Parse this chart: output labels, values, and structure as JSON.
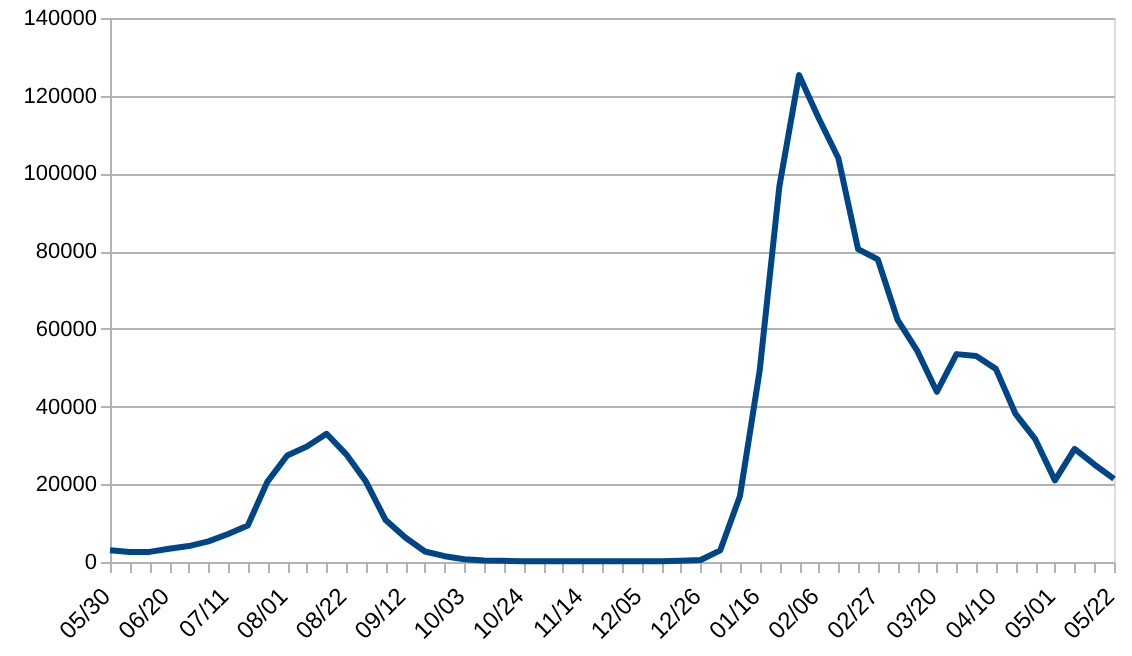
{
  "chart_data": {
    "type": "line",
    "categories": [
      "05/30",
      null,
      null,
      "06/20",
      null,
      null,
      "07/11",
      null,
      null,
      "08/01",
      null,
      null,
      "08/22",
      null,
      null,
      "09/12",
      null,
      null,
      "10/03",
      null,
      null,
      "10/24",
      null,
      null,
      "11/14",
      null,
      null,
      "12/05",
      null,
      null,
      "12/26",
      null,
      null,
      "01/16",
      null,
      null,
      "02/06",
      null,
      null,
      "02/27",
      null,
      null,
      "03/20",
      null,
      null,
      "04/10",
      null,
      null,
      "05/01",
      null,
      null,
      "05/22"
    ],
    "series": [
      {
        "color": "#004586",
        "values": [
          3000,
          2600,
          2600,
          3400,
          4100,
          5300,
          7200,
          9400,
          20700,
          27400,
          29700,
          33000,
          27700,
          20700,
          10800,
          6300,
          2700,
          1500,
          700,
          400,
          300,
          200,
          200,
          200,
          200,
          200,
          200,
          200,
          200,
          300,
          500,
          3000,
          17000,
          49200,
          96600,
          125300,
          114200,
          103900,
          80500,
          77900,
          62400,
          54400,
          43800,
          53500,
          53000,
          49700,
          38100,
          31600,
          21000,
          29100,
          25100,
          21400
        ]
      }
    ],
    "ylim": [
      0,
      140000
    ],
    "yticks": [
      0,
      20000,
      40000,
      60000,
      80000,
      100000,
      120000,
      140000
    ],
    "grid": "y",
    "marker": "none",
    "line_style": "solid"
  }
}
